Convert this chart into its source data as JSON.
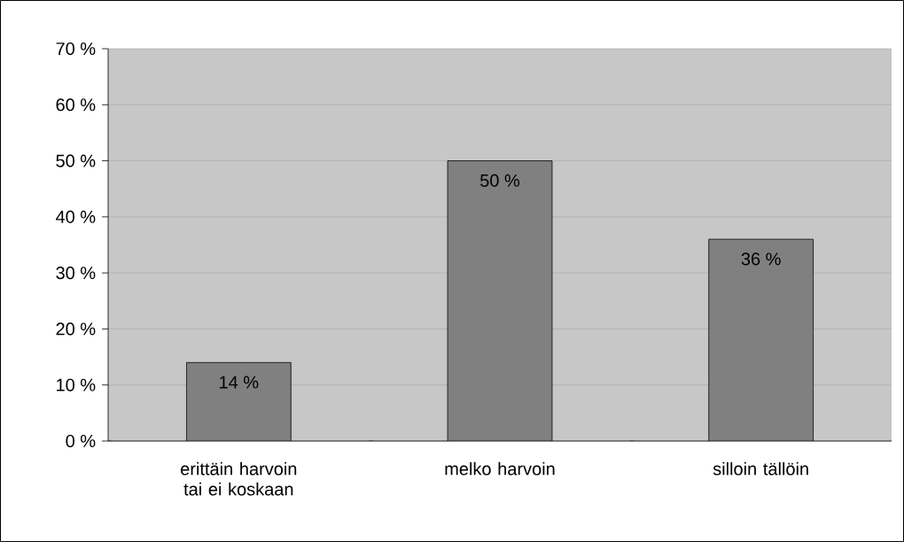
{
  "chart_data": {
    "type": "bar",
    "categories": [
      "erittäin harvoin tai ei koskaan",
      "melko harvoin",
      "silloin tällöin"
    ],
    "values": [
      14,
      50,
      36
    ],
    "value_labels": [
      "14 %",
      "50 %",
      "36 %"
    ],
    "color": "#808080",
    "ylim": [
      0,
      70
    ],
    "yticks": [
      {
        "value": 0,
        "label": "0 %"
      },
      {
        "value": 10,
        "label": "10 %"
      },
      {
        "value": 20,
        "label": "20 %"
      },
      {
        "value": 30,
        "label": "30 %"
      },
      {
        "value": 40,
        "label": "40 %"
      },
      {
        "value": 50,
        "label": "50 %"
      },
      {
        "value": 60,
        "label": "60 %"
      },
      {
        "value": 70,
        "label": "70 %"
      }
    ],
    "grid": "y"
  }
}
